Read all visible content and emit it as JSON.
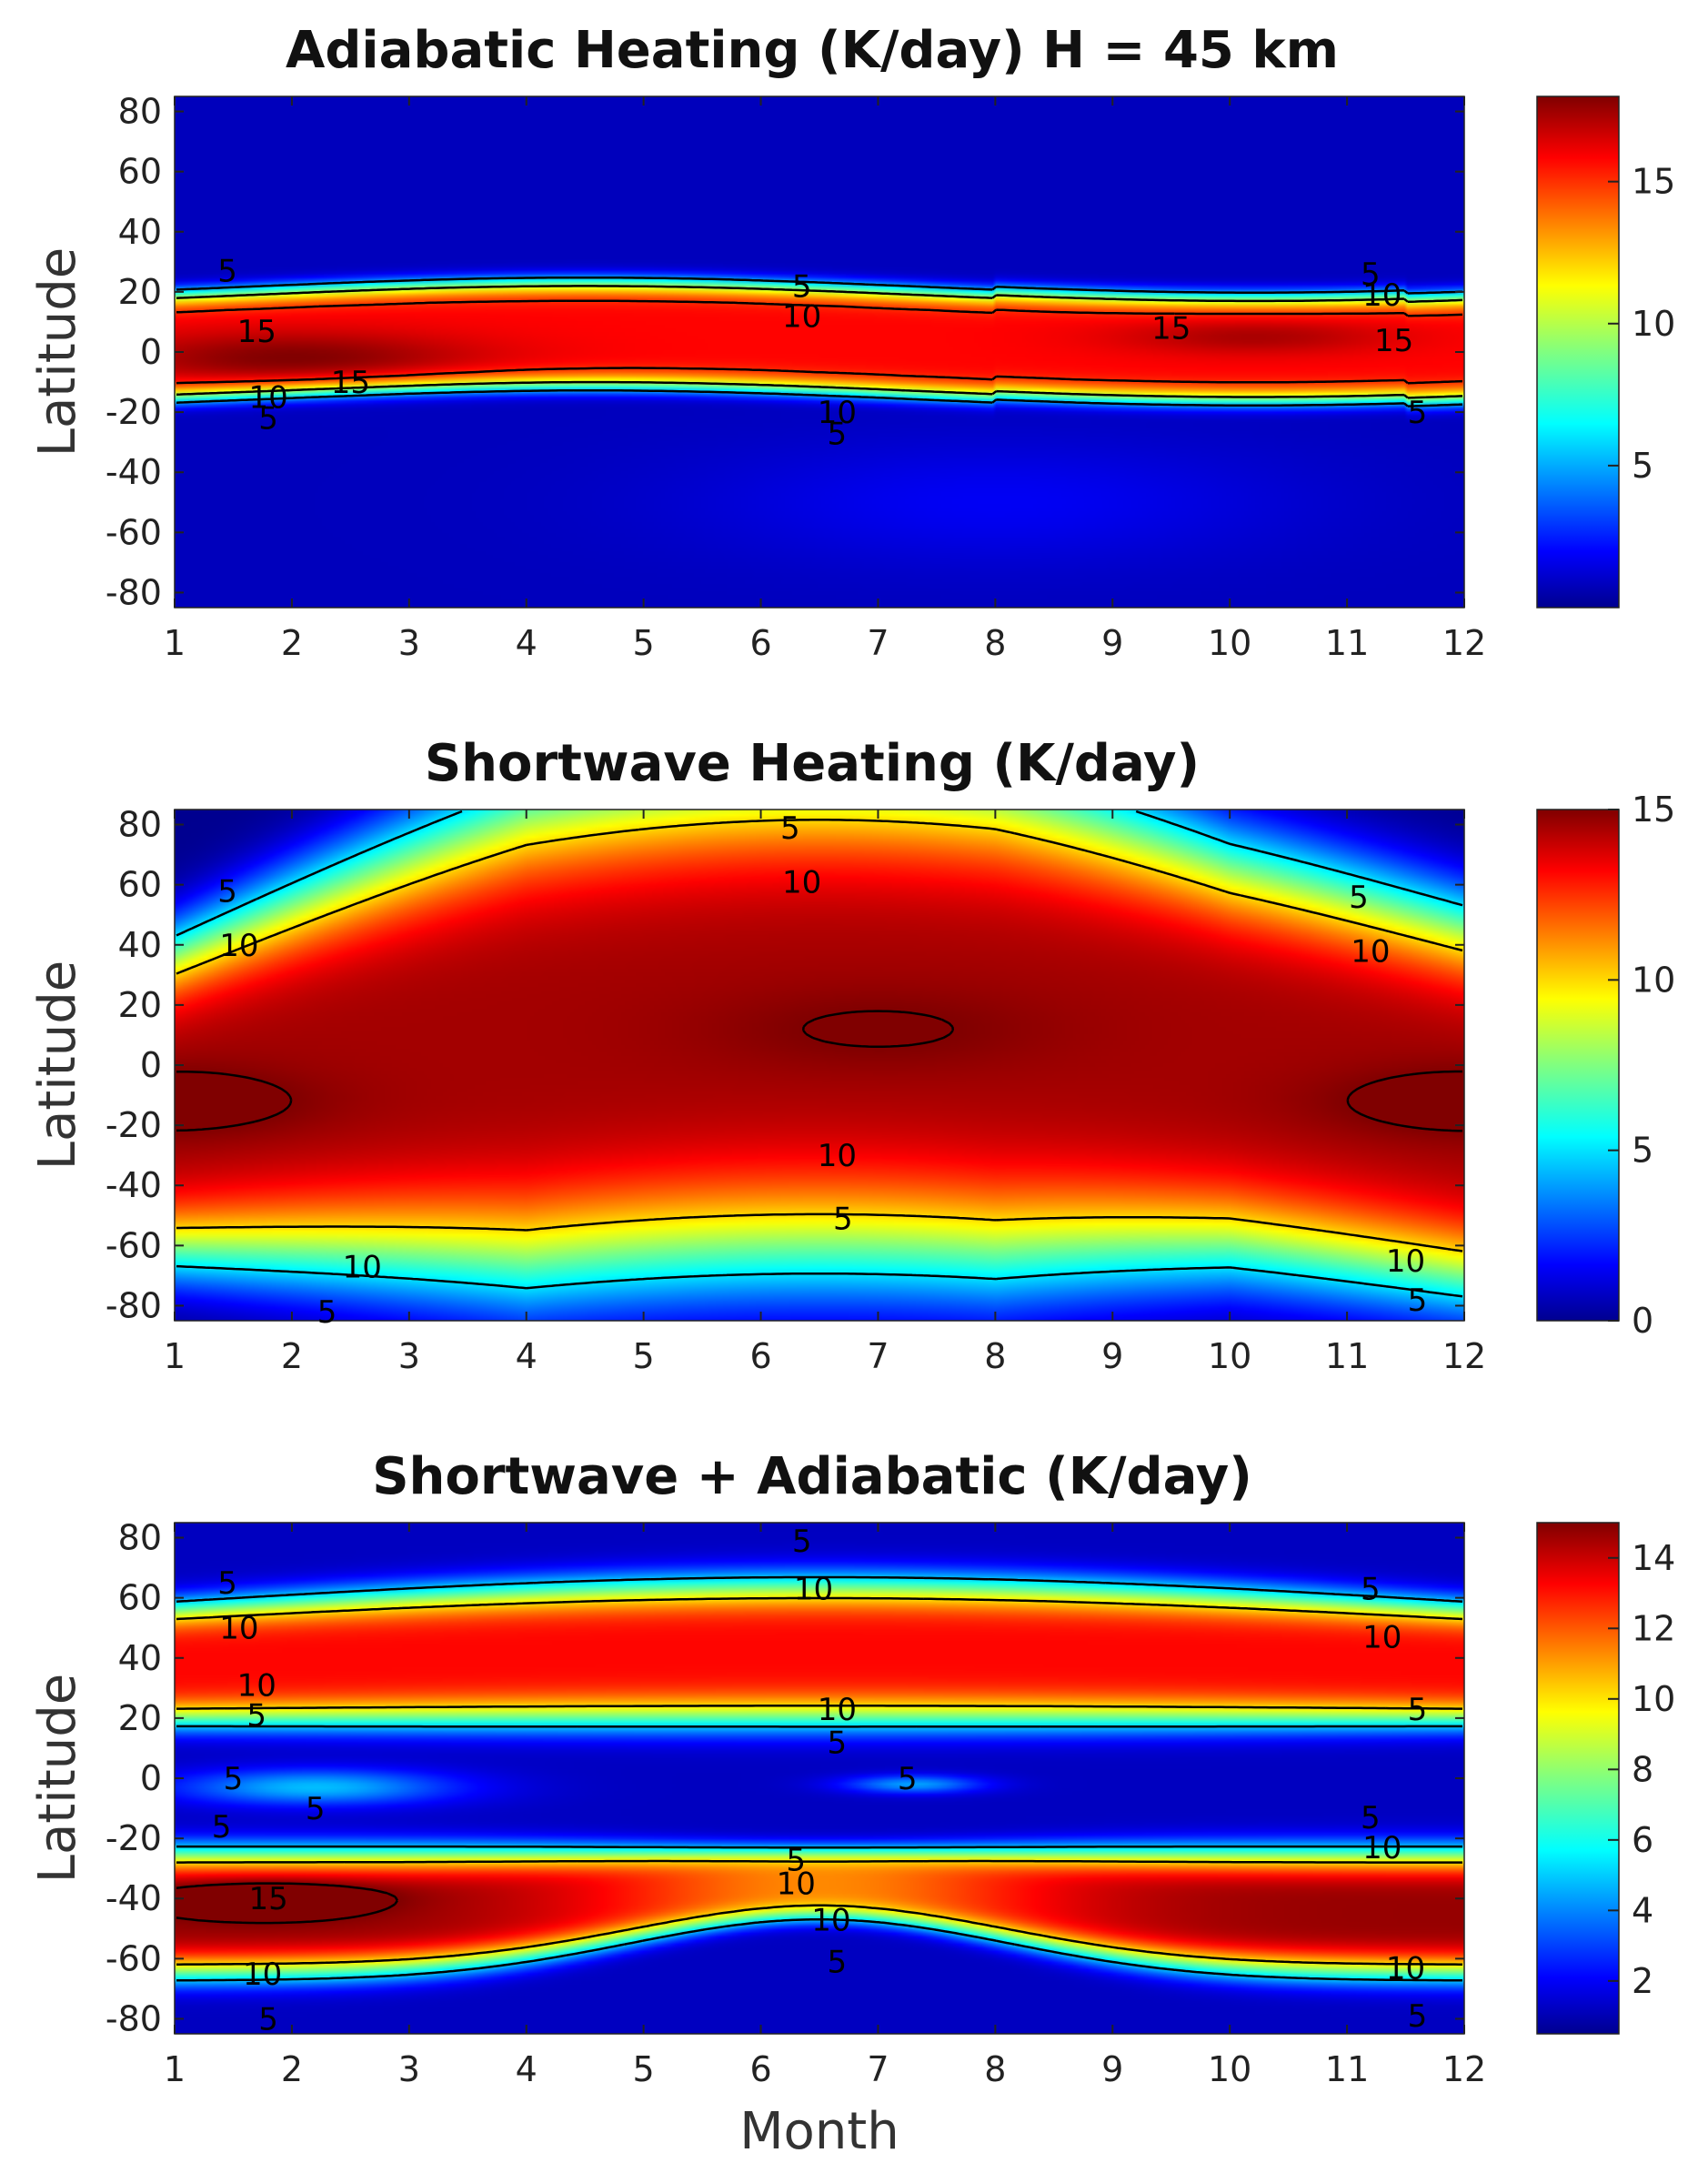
{
  "figure": {
    "xlabel": "Month",
    "ylabel": "Latitude"
  },
  "chart_data": [
    {
      "type": "heatmap",
      "title": "Adiabatic Heating (K/day) H = 45 km",
      "xlabel": "",
      "ylabel": "Latitude",
      "xlim": [
        1,
        12
      ],
      "ylim": [
        -85,
        85
      ],
      "x_ticks": [
        "1",
        "2",
        "3",
        "4",
        "5",
        "6",
        "7",
        "8",
        "9",
        "10",
        "11",
        "12"
      ],
      "y_ticks": [
        "80",
        "60",
        "40",
        "20",
        "0",
        "-20",
        "-40",
        "-60",
        "-80"
      ],
      "colorbar": {
        "min": 0,
        "max": 18,
        "ticks": [
          "5",
          "10",
          "15"
        ],
        "tick_values": [
          5,
          10,
          15
        ]
      },
      "contour_labels": [
        {
          "text": "5",
          "x": 1.45,
          "y": 27
        },
        {
          "text": "5",
          "x": 6.35,
          "y": 22
        },
        {
          "text": "5",
          "x": 11.2,
          "y": 26
        },
        {
          "text": "10",
          "x": 6.35,
          "y": 12
        },
        {
          "text": "10",
          "x": 11.3,
          "y": 19
        },
        {
          "text": "15",
          "x": 1.7,
          "y": 7
        },
        {
          "text": "15",
          "x": 9.5,
          "y": 8
        },
        {
          "text": "15",
          "x": 11.4,
          "y": 4
        },
        {
          "text": "15",
          "x": 2.5,
          "y": -10
        },
        {
          "text": "10",
          "x": 1.8,
          "y": -15
        },
        {
          "text": "5",
          "x": 1.8,
          "y": -22
        },
        {
          "text": "10",
          "x": 6.65,
          "y": -20
        },
        {
          "text": "5",
          "x": 6.65,
          "y": -27
        },
        {
          "text": "5",
          "x": 11.6,
          "y": -20
        }
      ]
    },
    {
      "type": "heatmap",
      "title": "Shortwave Heating (K/day)",
      "xlabel": "",
      "ylabel": "Latitude",
      "xlim": [
        1,
        12
      ],
      "ylim": [
        -85,
        85
      ],
      "x_ticks": [
        "1",
        "2",
        "3",
        "4",
        "5",
        "6",
        "7",
        "8",
        "9",
        "10",
        "11",
        "12"
      ],
      "y_ticks": [
        "80",
        "60",
        "40",
        "20",
        "0",
        "-20",
        "-40",
        "-60",
        "-80"
      ],
      "colorbar": {
        "min": 0,
        "max": 15,
        "ticks": [
          "0",
          "5",
          "10",
          "15"
        ],
        "tick_values": [
          0,
          5,
          10,
          15
        ]
      },
      "contour_labels": [
        {
          "text": "5",
          "x": 1.45,
          "y": 58
        },
        {
          "text": "5",
          "x": 6.25,
          "y": 79
        },
        {
          "text": "5",
          "x": 11.1,
          "y": 56
        },
        {
          "text": "10",
          "x": 1.55,
          "y": 40
        },
        {
          "text": "10",
          "x": 6.35,
          "y": 61
        },
        {
          "text": "10",
          "x": 11.2,
          "y": 38
        },
        {
          "text": "10",
          "x": 6.65,
          "y": -30
        },
        {
          "text": "5",
          "x": 6.7,
          "y": -51
        },
        {
          "text": "10",
          "x": 2.6,
          "y": -67
        },
        {
          "text": "5",
          "x": 2.3,
          "y": -82
        },
        {
          "text": "10",
          "x": 11.5,
          "y": -65
        },
        {
          "text": "5",
          "x": 11.6,
          "y": -78
        }
      ]
    },
    {
      "type": "heatmap",
      "title": "Shortwave + Adiabatic (K/day)",
      "xlabel": "Month",
      "ylabel": "Latitude",
      "xlim": [
        1,
        12
      ],
      "ylim": [
        -85,
        85
      ],
      "x_ticks": [
        "1",
        "2",
        "3",
        "4",
        "5",
        "6",
        "7",
        "8",
        "9",
        "10",
        "11",
        "12"
      ],
      "y_ticks": [
        "80",
        "60",
        "40",
        "20",
        "0",
        "-20",
        "-40",
        "-60",
        "-80"
      ],
      "colorbar": {
        "min": 0.5,
        "max": 15,
        "ticks": [
          "2",
          "4",
          "6",
          "8",
          "10",
          "12",
          "14"
        ],
        "tick_values": [
          2,
          4,
          6,
          8,
          10,
          12,
          14
        ]
      },
      "contour_labels": [
        {
          "text": "5",
          "x": 1.45,
          "y": 65
        },
        {
          "text": "5",
          "x": 6.35,
          "y": 79
        },
        {
          "text": "5",
          "x": 11.2,
          "y": 63
        },
        {
          "text": "10",
          "x": 1.55,
          "y": 50
        },
        {
          "text": "10",
          "x": 6.45,
          "y": 63
        },
        {
          "text": "10",
          "x": 11.3,
          "y": 47
        },
        {
          "text": "10",
          "x": 1.7,
          "y": 31
        },
        {
          "text": "5",
          "x": 1.7,
          "y": 21
        },
        {
          "text": "10",
          "x": 6.65,
          "y": 23
        },
        {
          "text": "5",
          "x": 6.65,
          "y": 12
        },
        {
          "text": "5",
          "x": 11.6,
          "y": 23
        },
        {
          "text": "5",
          "x": 1.5,
          "y": 0
        },
        {
          "text": "5",
          "x": 2.2,
          "y": -10
        },
        {
          "text": "5",
          "x": 7.25,
          "y": 0
        },
        {
          "text": "5",
          "x": 1.4,
          "y": -16
        },
        {
          "text": "5",
          "x": 11.2,
          "y": -13
        },
        {
          "text": "10",
          "x": 11.3,
          "y": -23
        },
        {
          "text": "5",
          "x": 6.3,
          "y": -27
        },
        {
          "text": "10",
          "x": 6.3,
          "y": -35
        },
        {
          "text": "15",
          "x": 1.8,
          "y": -40
        },
        {
          "text": "10",
          "x": 6.6,
          "y": -47
        },
        {
          "text": "5",
          "x": 6.65,
          "y": -61
        },
        {
          "text": "10",
          "x": 1.75,
          "y": -65
        },
        {
          "text": "5",
          "x": 1.8,
          "y": -80
        },
        {
          "text": "10",
          "x": 11.5,
          "y": -63
        },
        {
          "text": "5",
          "x": 11.6,
          "y": -79
        }
      ]
    }
  ]
}
